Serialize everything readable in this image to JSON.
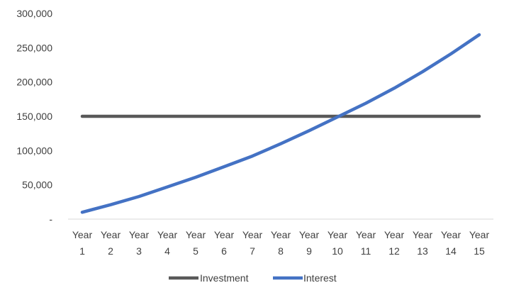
{
  "chart_data": {
    "type": "line",
    "title": "",
    "xlabel": "",
    "ylabel": "",
    "categories": [
      [
        "Year",
        "1"
      ],
      [
        "Year",
        "2"
      ],
      [
        "Year",
        "3"
      ],
      [
        "Year",
        "4"
      ],
      [
        "Year",
        "5"
      ],
      [
        "Year",
        "6"
      ],
      [
        "Year",
        "7"
      ],
      [
        "Year",
        "8"
      ],
      [
        "Year",
        "9"
      ],
      [
        "Year",
        "10"
      ],
      [
        "Year",
        "11"
      ],
      [
        "Year",
        "12"
      ],
      [
        "Year",
        "13"
      ],
      [
        "Year",
        "14"
      ],
      [
        "Year",
        "15"
      ]
    ],
    "ylim": [
      0,
      300000
    ],
    "yticks": [
      {
        "value": 0,
        "label": "-"
      },
      {
        "value": 50000,
        "label": "50,000"
      },
      {
        "value": 100000,
        "label": "100,000"
      },
      {
        "value": 150000,
        "label": "150,000"
      },
      {
        "value": 200000,
        "label": "200,000"
      },
      {
        "value": 250000,
        "label": "250,000"
      },
      {
        "value": 300000,
        "label": "300,000"
      }
    ],
    "grid": false,
    "legend_position": "bottom",
    "series": [
      {
        "name": "Investment",
        "color": "#595959",
        "values": [
          150000,
          150000,
          150000,
          150000,
          150000,
          150000,
          150000,
          150000,
          150000,
          150000,
          150000,
          150000,
          150000,
          150000,
          150000
        ]
      },
      {
        "name": "Interest",
        "color": "#4472C4",
        "values": [
          10000,
          21000,
          33000,
          47000,
          61000,
          76500,
          92000,
          110000,
          129000,
          149000,
          169000,
          191000,
          215000,
          241000,
          269000
        ]
      }
    ]
  }
}
